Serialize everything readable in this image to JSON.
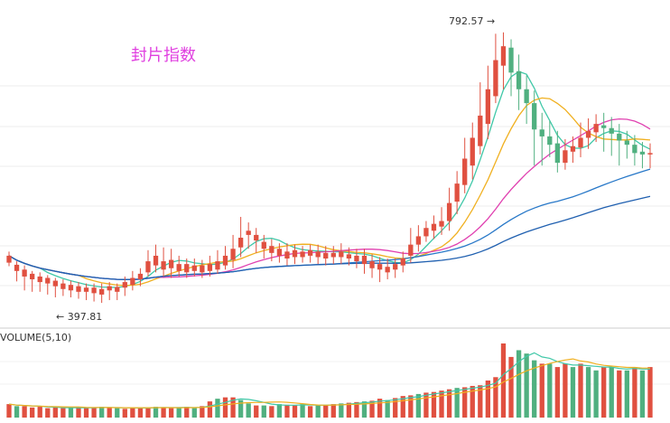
{
  "chart_data": {
    "type": "candlestick",
    "title": "封片指数",
    "max_annotation": "792.57 →",
    "min_annotation": "← 397.81",
    "volume_label": "VOLUME(5,10)",
    "ylim": [
      380,
      810
    ],
    "colors": {
      "up": "#e05040",
      "down": "#50b080",
      "ma_fast": "#40c8a8",
      "ma_mid": "#f0b020",
      "ma_slow": "#e040b0",
      "ma_long1": "#2878c8",
      "ma_long2": "#2060b0"
    },
    "candles": [
      [
        460,
        470,
        476,
        455
      ],
      [
        448,
        457,
        462,
        433
      ],
      [
        440,
        450,
        456,
        420
      ],
      [
        436,
        444,
        448,
        418
      ],
      [
        432,
        440,
        446,
        418
      ],
      [
        430,
        438,
        442,
        414
      ],
      [
        426,
        434,
        438,
        410
      ],
      [
        422,
        430,
        436,
        412
      ],
      [
        420,
        428,
        434,
        410
      ],
      [
        418,
        426,
        432,
        408
      ],
      [
        418,
        424,
        430,
        406
      ],
      [
        416,
        424,
        430,
        404
      ],
      [
        414,
        422,
        430,
        402
      ],
      [
        420,
        426,
        432,
        406
      ],
      [
        418,
        425,
        430,
        406
      ],
      [
        424,
        432,
        440,
        412
      ],
      [
        428,
        438,
        448,
        420
      ],
      [
        436,
        444,
        452,
        426
      ],
      [
        446,
        462,
        478,
        440
      ],
      [
        456,
        470,
        486,
        446
      ],
      [
        450,
        462,
        482,
        440
      ],
      [
        452,
        464,
        480,
        438
      ],
      [
        448,
        458,
        470,
        440
      ],
      [
        446,
        458,
        466,
        438
      ],
      [
        448,
        456,
        466,
        440
      ],
      [
        446,
        456,
        464,
        438
      ],
      [
        448,
        458,
        470,
        440
      ],
      [
        450,
        462,
        478,
        444
      ],
      [
        456,
        470,
        484,
        450
      ],
      [
        464,
        480,
        500,
        452
      ],
      [
        482,
        496,
        526,
        468
      ],
      [
        500,
        506,
        518,
        480
      ],
      [
        492,
        500,
        510,
        474
      ],
      [
        480,
        490,
        500,
        466
      ],
      [
        474,
        484,
        494,
        462
      ],
      [
        470,
        480,
        488,
        460
      ],
      [
        466,
        476,
        488,
        456
      ],
      [
        468,
        478,
        486,
        458
      ],
      [
        468,
        476,
        484,
        460
      ],
      [
        470,
        478,
        486,
        460
      ],
      [
        468,
        476,
        486,
        458
      ],
      [
        466,
        474,
        484,
        456
      ],
      [
        468,
        474,
        484,
        458
      ],
      [
        468,
        476,
        488,
        458
      ],
      [
        466,
        472,
        482,
        456
      ],
      [
        462,
        470,
        480,
        452
      ],
      [
        458,
        470,
        480,
        444
      ],
      [
        452,
        462,
        472,
        438
      ],
      [
        450,
        458,
        468,
        432
      ],
      [
        446,
        454,
        466,
        436
      ],
      [
        450,
        458,
        466,
        438
      ],
      [
        456,
        466,
        476,
        446
      ],
      [
        470,
        486,
        510,
        460
      ],
      [
        486,
        498,
        514,
        476
      ],
      [
        498,
        510,
        520,
        490
      ],
      [
        506,
        516,
        528,
        494
      ],
      [
        512,
        520,
        540,
        500
      ],
      [
        520,
        546,
        568,
        506
      ],
      [
        548,
        574,
        592,
        530
      ],
      [
        572,
        610,
        640,
        560
      ],
      [
        600,
        640,
        662,
        580
      ],
      [
        628,
        672,
        720,
        616
      ],
      [
        660,
        710,
        744,
        638
      ],
      [
        700,
        752,
        790,
        690
      ],
      [
        744,
        772,
        792,
        710
      ],
      [
        770,
        734,
        782,
        700
      ],
      [
        736,
        710,
        760,
        680
      ],
      [
        710,
        690,
        730,
        660
      ],
      [
        690,
        652,
        708,
        600
      ],
      [
        652,
        642,
        676,
        600
      ],
      [
        642,
        630,
        664,
        612
      ],
      [
        632,
        604,
        650,
        590
      ],
      [
        604,
        622,
        638,
        594
      ],
      [
        620,
        628,
        642,
        604
      ],
      [
        626,
        640,
        662,
        612
      ],
      [
        640,
        650,
        668,
        624
      ],
      [
        648,
        660,
        674,
        634
      ],
      [
        658,
        654,
        676,
        620
      ],
      [
        654,
        646,
        670,
        614
      ],
      [
        646,
        636,
        660,
        600
      ],
      [
        636,
        630,
        650,
        610
      ],
      [
        630,
        618,
        644,
        600
      ],
      [
        620,
        616,
        634,
        596
      ],
      [
        616,
        618,
        632,
        596
      ]
    ],
    "volume": [
      [
        40,
        1
      ],
      [
        34,
        0
      ],
      [
        34,
        1
      ],
      [
        30,
        1
      ],
      [
        32,
        1
      ],
      [
        28,
        1
      ],
      [
        30,
        1
      ],
      [
        28,
        1
      ],
      [
        30,
        0
      ],
      [
        30,
        1
      ],
      [
        28,
        1
      ],
      [
        30,
        1
      ],
      [
        32,
        0
      ],
      [
        30,
        1
      ],
      [
        28,
        0
      ],
      [
        26,
        1
      ],
      [
        30,
        1
      ],
      [
        28,
        1
      ],
      [
        30,
        1
      ],
      [
        32,
        0
      ],
      [
        30,
        1
      ],
      [
        28,
        1
      ],
      [
        30,
        0
      ],
      [
        32,
        1
      ],
      [
        28,
        0
      ],
      [
        34,
        1
      ],
      [
        48,
        1
      ],
      [
        56,
        0
      ],
      [
        60,
        1
      ],
      [
        60,
        1
      ],
      [
        52,
        0
      ],
      [
        42,
        0
      ],
      [
        36,
        1
      ],
      [
        36,
        0
      ],
      [
        34,
        1
      ],
      [
        40,
        0
      ],
      [
        38,
        1
      ],
      [
        36,
        1
      ],
      [
        40,
        0
      ],
      [
        34,
        1
      ],
      [
        36,
        0
      ],
      [
        38,
        1
      ],
      [
        40,
        1
      ],
      [
        42,
        0
      ],
      [
        44,
        1
      ],
      [
        46,
        1
      ],
      [
        48,
        0
      ],
      [
        50,
        1
      ],
      [
        56,
        1
      ],
      [
        52,
        0
      ],
      [
        58,
        1
      ],
      [
        64,
        1
      ],
      [
        66,
        1
      ],
      [
        70,
        0
      ],
      [
        74,
        1
      ],
      [
        76,
        1
      ],
      [
        80,
        1
      ],
      [
        84,
        1
      ],
      [
        88,
        0
      ],
      [
        90,
        1
      ],
      [
        94,
        1
      ],
      [
        96,
        1
      ],
      [
        110,
        1
      ],
      [
        120,
        1
      ],
      [
        220,
        1
      ],
      [
        180,
        1
      ],
      [
        200,
        0
      ],
      [
        190,
        0
      ],
      [
        170,
        0
      ],
      [
        160,
        1
      ],
      [
        160,
        0
      ],
      [
        150,
        1
      ],
      [
        160,
        1
      ],
      [
        150,
        0
      ],
      [
        160,
        1
      ],
      [
        150,
        0
      ],
      [
        140,
        0
      ],
      [
        150,
        1
      ],
      [
        150,
        0
      ],
      [
        140,
        1
      ],
      [
        140,
        0
      ],
      [
        150,
        1
      ],
      [
        140,
        0
      ],
      [
        150,
        1
      ]
    ],
    "moving_averages": [
      {
        "key": "ma_fast",
        "period": 5
      },
      {
        "key": "ma_mid",
        "period": 10
      },
      {
        "key": "ma_slow",
        "period": 20
      },
      {
        "key": "ma_long1",
        "period": 40
      },
      {
        "key": "ma_long2",
        "period": 60
      }
    ]
  }
}
